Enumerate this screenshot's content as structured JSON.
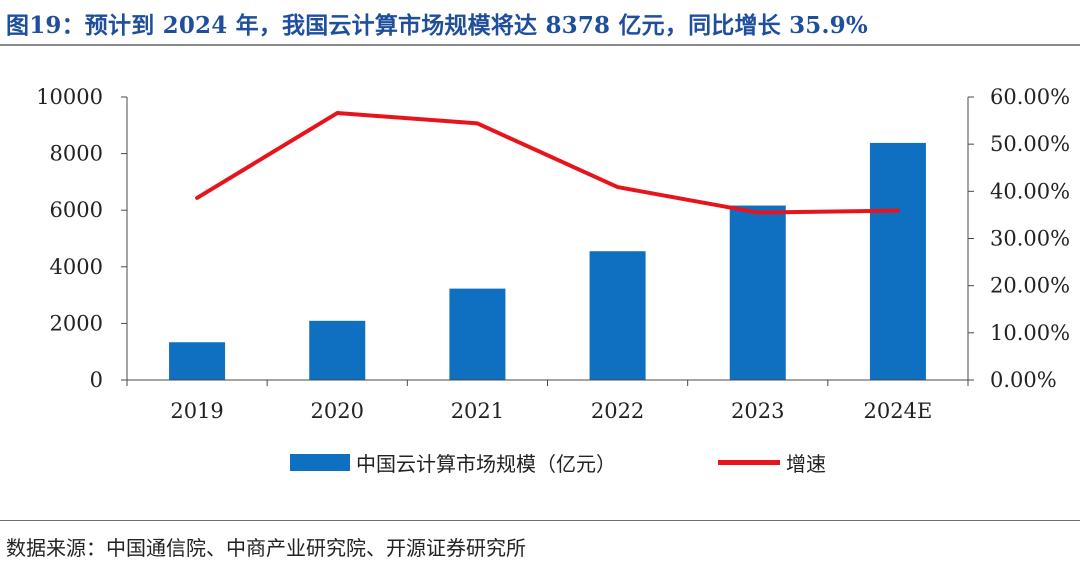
{
  "figure": {
    "title": "图19：预计到 2024 年，我国云计算市场规模将达 8378 亿元，同比增长 35.9%",
    "source": "数据来源：中国通信院、中商产业研究院、开源证券研究所"
  },
  "chart_data": {
    "type": "bar",
    "categories": [
      "2019",
      "2020",
      "2021",
      "2022",
      "2023",
      "2024E"
    ],
    "series": [
      {
        "name": "中国云计算市场规模（亿元）",
        "type": "bar",
        "axis": "left",
        "color": "#0f6fc1",
        "values": [
          1334,
          2091,
          3229,
          4550,
          6165,
          8378
        ]
      },
      {
        "name": "增速",
        "type": "line",
        "axis": "right",
        "color": "#e8141c",
        "values": [
          38.6,
          56.6,
          54.4,
          40.9,
          35.5,
          35.9
        ]
      }
    ],
    "y_left": {
      "range": [
        0,
        10000
      ],
      "ticks": [
        "0",
        "2000",
        "4000",
        "6000",
        "8000",
        "10000"
      ]
    },
    "y_right": {
      "range": [
        0,
        60
      ],
      "ticks": [
        "0.00%",
        "10.00%",
        "20.00%",
        "30.00%",
        "40.00%",
        "50.00%",
        "60.00%"
      ]
    },
    "grid": false,
    "legend": "bottom"
  }
}
